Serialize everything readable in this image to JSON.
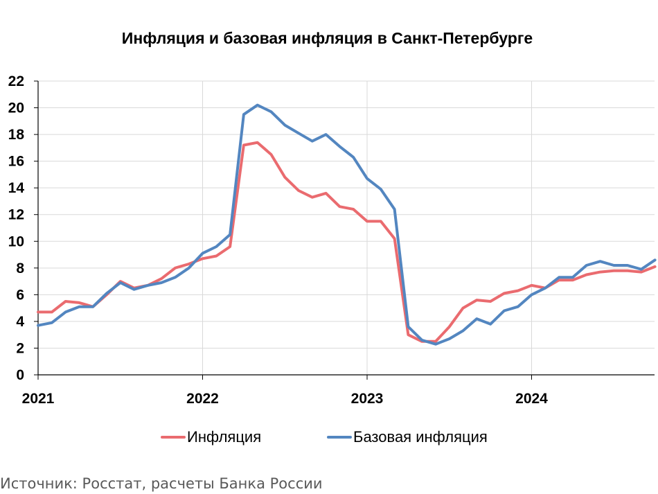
{
  "title": "Инфляция и базовая инфляция в Санкт-Петербурге",
  "source": "Источник: Росстат, расчеты Банка России",
  "colors": {
    "inflation": "#EA6B6F",
    "core": "#5386C0",
    "grid": "#D9D9D9",
    "axis": "#000000"
  },
  "chart_data": {
    "type": "line",
    "title": "Инфляция и базовая инфляция в Санкт-Петербурге",
    "xlabel": "",
    "ylabel": "",
    "ylim": [
      0,
      22
    ],
    "yticks": [
      "0",
      "2",
      "4",
      "6",
      "8",
      "10",
      "12",
      "14",
      "16",
      "18",
      "20",
      "22"
    ],
    "xticks": [
      "2021",
      "2022",
      "2023",
      "2024"
    ],
    "x_start": "2021-01",
    "grid": true,
    "legend_position": "bottom",
    "series": [
      {
        "name": "Инфляция",
        "values": [
          4.7,
          4.7,
          5.5,
          5.4,
          5.1,
          6.0,
          7.0,
          6.5,
          6.7,
          7.2,
          8.0,
          8.3,
          8.7,
          8.9,
          9.6,
          17.2,
          17.4,
          16.5,
          14.8,
          13.8,
          13.3,
          13.6,
          12.6,
          12.4,
          11.5,
          11.5,
          10.2,
          3.0,
          2.5,
          2.5,
          3.6,
          5.0,
          5.6,
          5.5,
          6.1,
          6.3,
          6.7,
          6.5,
          7.1,
          7.1,
          7.5,
          7.7,
          7.8,
          7.8,
          7.7,
          8.1
        ]
      },
      {
        "name": "Базовая инфляция",
        "values": [
          3.7,
          3.9,
          4.7,
          5.1,
          5.1,
          6.1,
          6.9,
          6.4,
          6.7,
          6.9,
          7.3,
          8.0,
          9.1,
          9.6,
          10.5,
          19.5,
          20.2,
          19.7,
          18.7,
          18.1,
          17.5,
          18.0,
          17.1,
          16.3,
          14.7,
          13.9,
          12.4,
          3.6,
          2.6,
          2.3,
          2.7,
          3.3,
          4.2,
          3.8,
          4.8,
          5.1,
          6.0,
          6.5,
          7.3,
          7.3,
          8.2,
          8.5,
          8.2,
          8.2,
          7.9,
          8.6
        ]
      }
    ]
  }
}
